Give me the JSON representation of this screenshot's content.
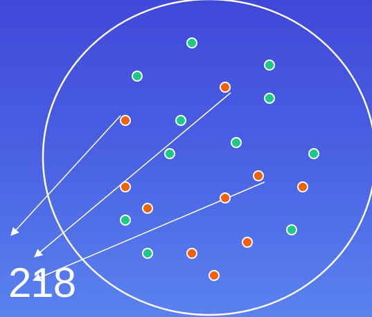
{
  "slide": {
    "page_number": "218"
  },
  "colors": {
    "outline": "#ffffff",
    "teal_dot": "#1ec88a",
    "orange_dot": "#f2600e"
  },
  "diagram": {
    "dot_count_total": 21,
    "teal_dot_count": 11,
    "orange_dot_count": 10,
    "arrow_count": 3
  }
}
